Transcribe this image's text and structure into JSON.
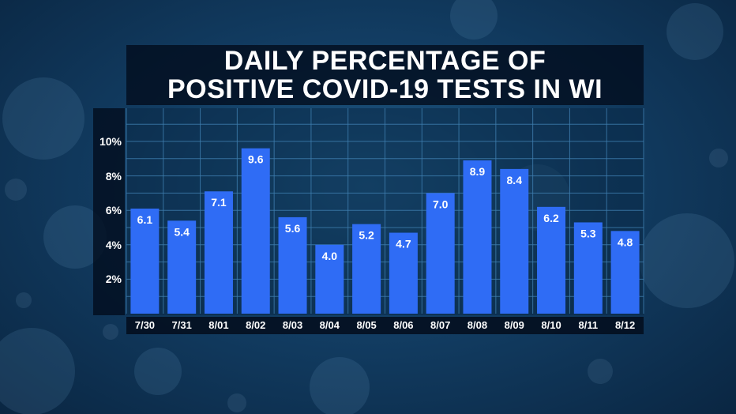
{
  "chart_data": {
    "type": "bar",
    "title_lines": [
      "DAILY PERCENTAGE OF",
      "POSITIVE COVID-19 TESTS IN WI"
    ],
    "categories": [
      "7/30",
      "7/31",
      "8/01",
      "8/02",
      "8/03",
      "8/04",
      "8/05",
      "8/06",
      "8/07",
      "8/08",
      "8/09",
      "8/10",
      "8/11",
      "8/12"
    ],
    "values": [
      6.1,
      5.4,
      7.1,
      9.6,
      5.6,
      4.0,
      5.2,
      4.7,
      7.0,
      8.9,
      8.4,
      6.2,
      5.3,
      4.8
    ],
    "value_labels": [
      "6.1",
      "5.4",
      "7.1",
      "9.6",
      "5.6",
      "4.0",
      "5.2",
      "4.7",
      "7.0",
      "8.9",
      "8.4",
      "6.2",
      "5.3",
      "4.8"
    ],
    "yticks": [
      2,
      4,
      6,
      8,
      10
    ],
    "ytick_labels": [
      "2%",
      "4%",
      "6%",
      "8%",
      "10%"
    ],
    "ylim": [
      0,
      12
    ],
    "grid": true,
    "bar_color": "#2f6cf5",
    "grid_color": "#3f7fb0"
  }
}
